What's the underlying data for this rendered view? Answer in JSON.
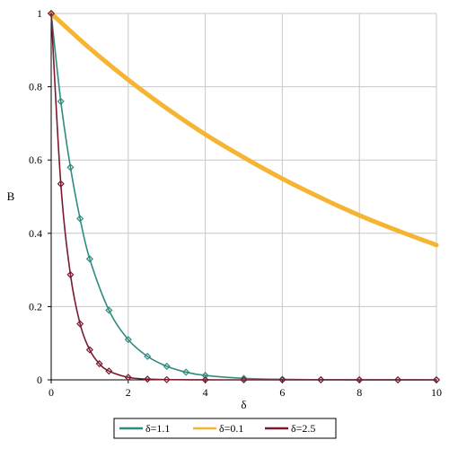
{
  "chart_data": {
    "type": "line",
    "title": "",
    "xlabel": "δ",
    "ylabel": "B",
    "xlim": [
      0,
      10
    ],
    "ylim": [
      0,
      1
    ],
    "x_ticks": [
      0,
      2,
      4,
      6,
      8,
      10
    ],
    "y_ticks": [
      0,
      0.2,
      0.4,
      0.6,
      0.8,
      1
    ],
    "x_tick_labels": [
      "0",
      "2",
      "4",
      "6",
      "8",
      "10"
    ],
    "y_tick_labels": [
      "0",
      "0.2",
      "0.4",
      "0.6",
      "0.8",
      "1"
    ],
    "grid": true,
    "legend_position": "bottom",
    "series": [
      {
        "name": "δ=1.1",
        "color": "#2e8b80",
        "marker": "diamond",
        "x": [
          0,
          0.25,
          0.5,
          0.75,
          1,
          1.5,
          2,
          2.5,
          3,
          3.5,
          4,
          5,
          6,
          7,
          8,
          9,
          10
        ],
        "values": [
          1,
          0.76,
          0.58,
          0.44,
          0.33,
          0.19,
          0.11,
          0.064,
          0.037,
          0.021,
          0.012,
          0.004,
          0.0014,
          0.0005,
          0.0002,
          0.0001,
          0
        ]
      },
      {
        "name": "δ=0.1",
        "color": "#f5b532",
        "marker": "none",
        "x": [
          0,
          1,
          2,
          3,
          4,
          5,
          6,
          7,
          8,
          9,
          10
        ],
        "values": [
          1,
          0.905,
          0.819,
          0.741,
          0.67,
          0.607,
          0.549,
          0.497,
          0.449,
          0.407,
          0.368
        ]
      },
      {
        "name": "δ=2.5",
        "color": "#7a1a2e",
        "marker": "diamond",
        "x": [
          0,
          0.25,
          0.5,
          0.75,
          1,
          1.25,
          1.5,
          2,
          2.5,
          3,
          4,
          5,
          6,
          7,
          8,
          9,
          10
        ],
        "values": [
          1,
          0.535,
          0.287,
          0.153,
          0.082,
          0.044,
          0.024,
          0.0067,
          0.0019,
          0.0006,
          5e-05,
          0,
          0,
          0,
          0,
          0,
          0
        ]
      }
    ]
  }
}
